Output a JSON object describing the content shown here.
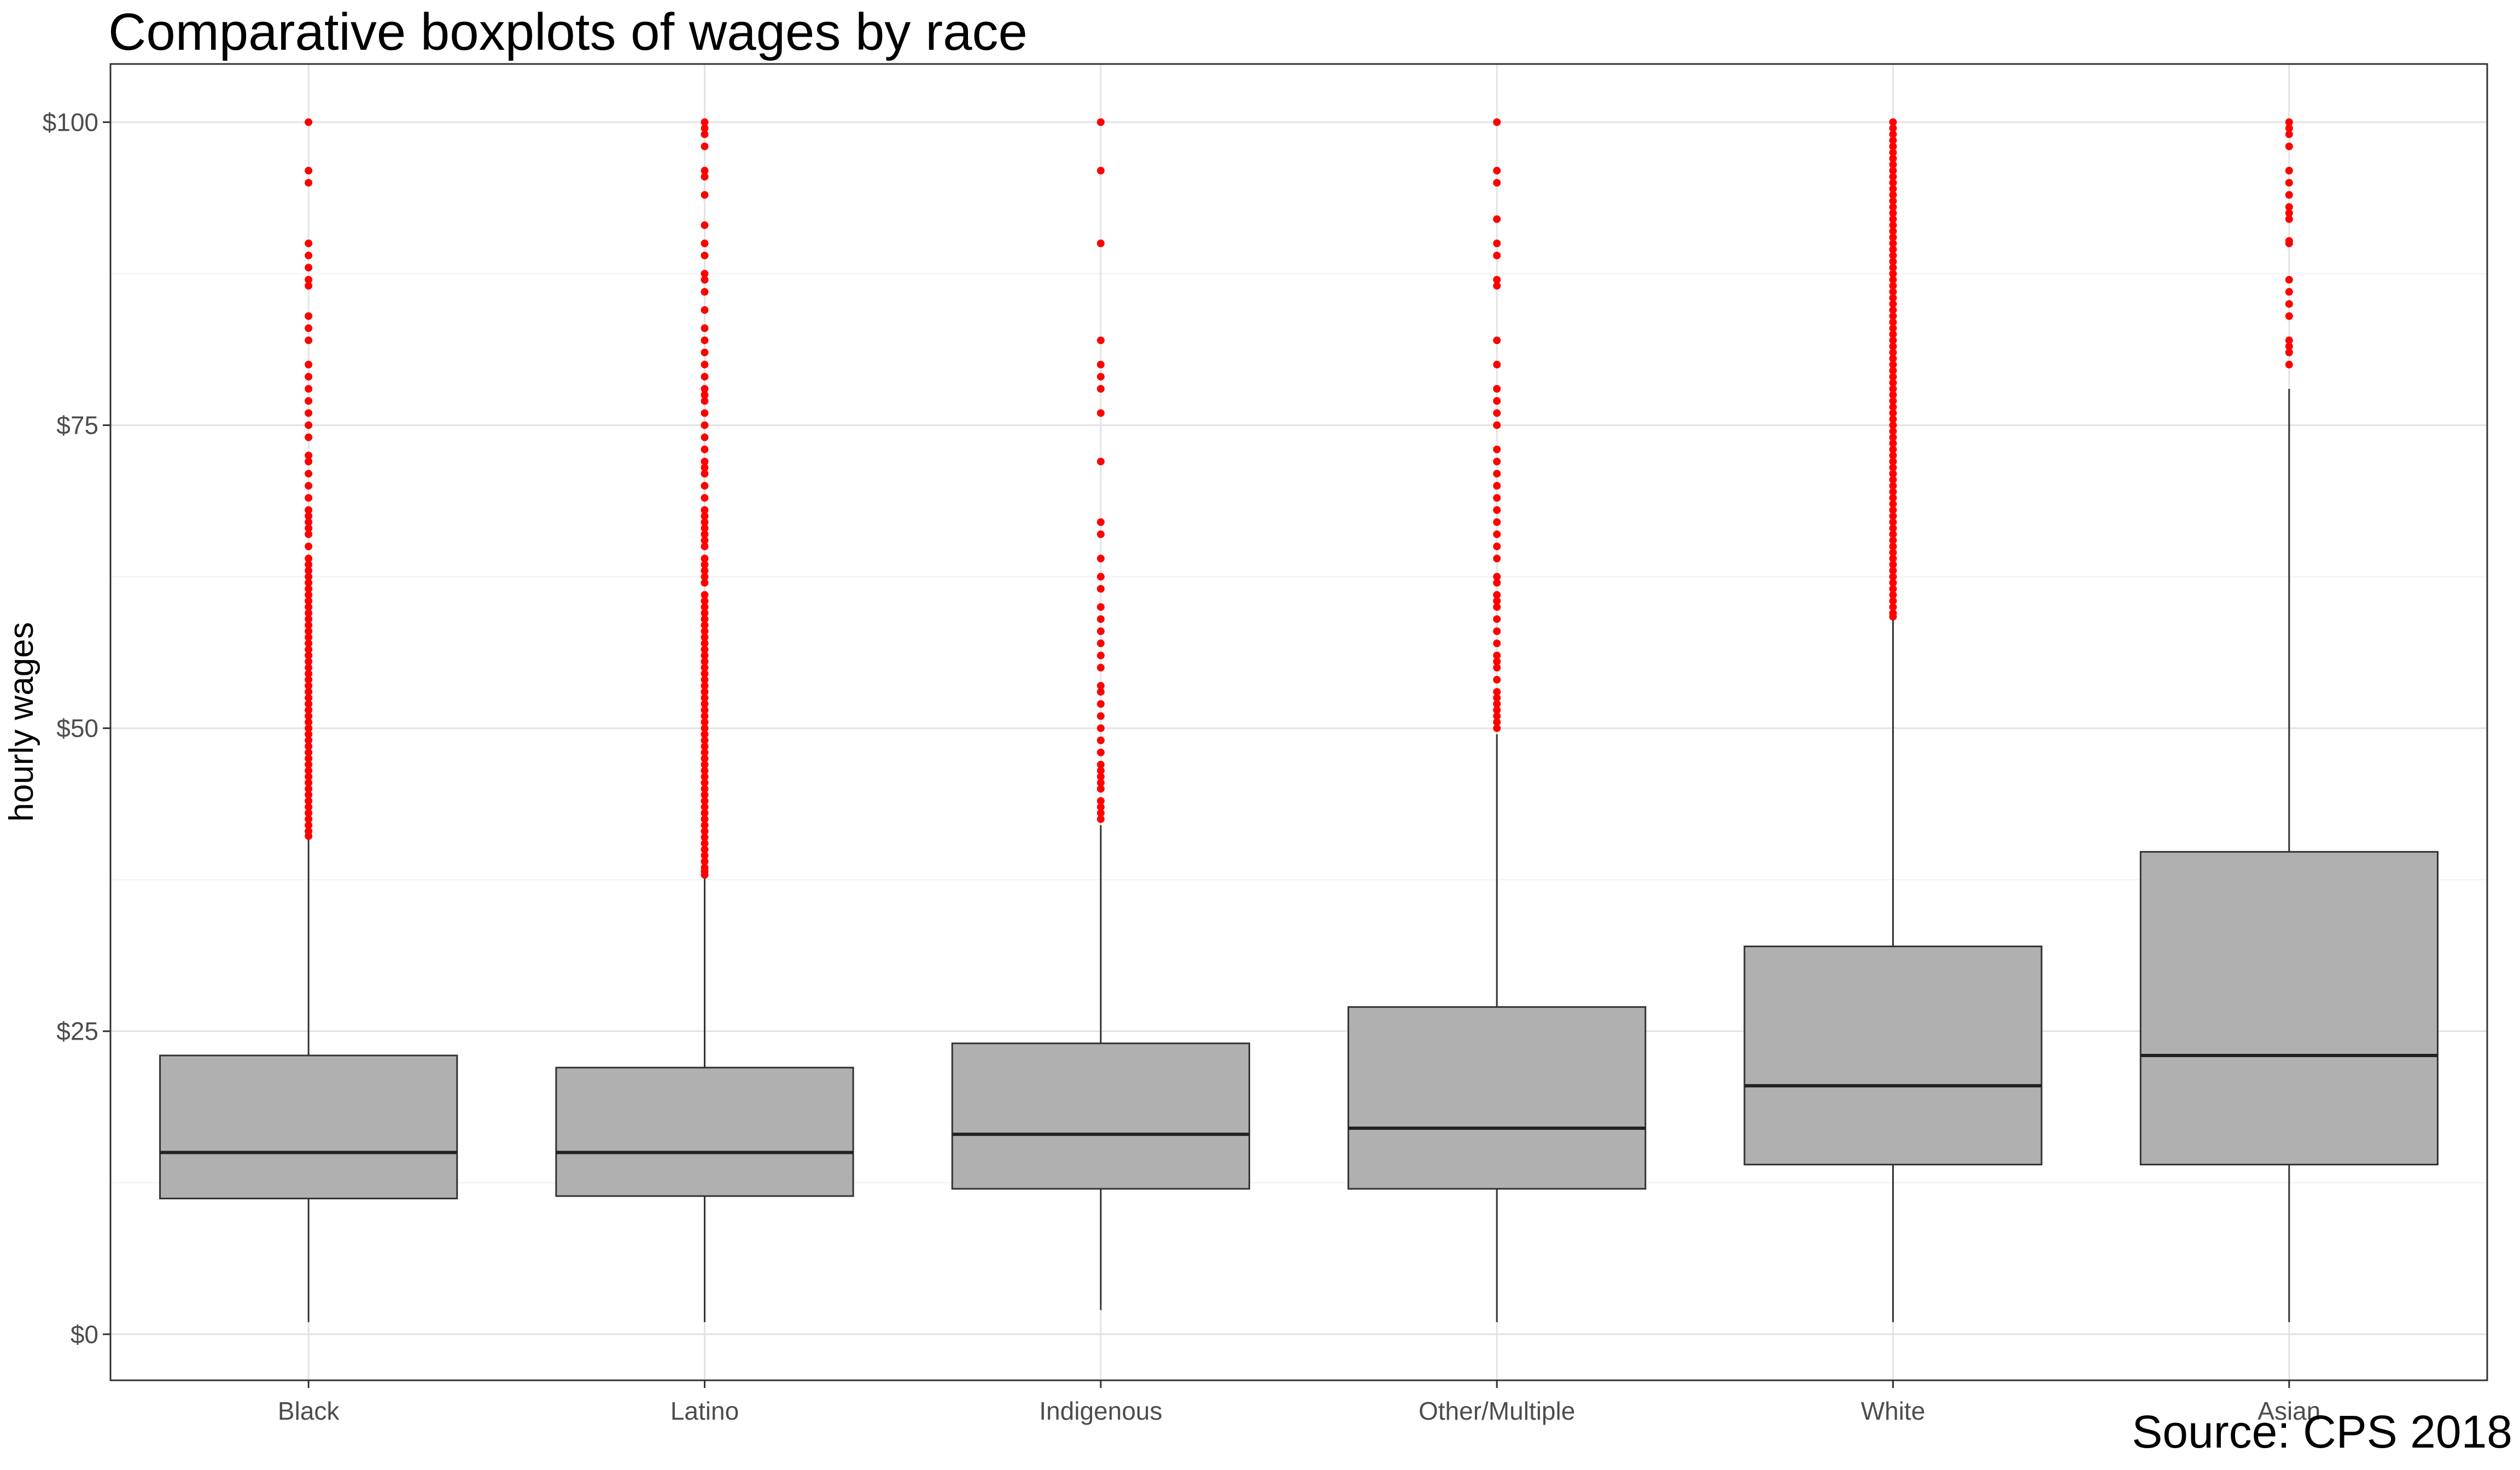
{
  "chart_data": {
    "type": "boxplot",
    "title": "Comparative boxplots of wages by race",
    "caption": "Source: CPS 2018",
    "xlabel": "",
    "ylabel": "hourly wages",
    "ylim": [
      -3.8,
      104.8
    ],
    "y_ticks": [
      0,
      25,
      50,
      75,
      100
    ],
    "y_tick_labels": [
      "$0",
      "$25",
      "$50",
      "$75",
      "$100"
    ],
    "grid": true,
    "box_fill": "#b0b0b0",
    "outlier_color": "#ff0000",
    "categories": [
      "Black",
      "Latino",
      "Indigenous",
      "Other/Multiple",
      "White",
      "Asian"
    ],
    "boxes": [
      {
        "category": "Black",
        "whisker_low": 1,
        "q1": 11.2,
        "median": 15,
        "q3": 23,
        "whisker_high": 41,
        "outliers": [
          41.1,
          41.5,
          42,
          42.5,
          43,
          43.5,
          44,
          44.5,
          45,
          45.5,
          46,
          46.5,
          47,
          47.5,
          48,
          48.5,
          49,
          49.5,
          50,
          50.5,
          51,
          51.5,
          52,
          52.5,
          53,
          53.5,
          54,
          54.5,
          55,
          55.5,
          56,
          56.5,
          57,
          57.5,
          58,
          58.5,
          59,
          59.5,
          60,
          60.5,
          61,
          61.5,
          62,
          62.5,
          63,
          63.5,
          64,
          65,
          66,
          66.5,
          67,
          67.5,
          68,
          69,
          70,
          71,
          72,
          72.5,
          74,
          75,
          76,
          77,
          78,
          79,
          80,
          82,
          83,
          84,
          86.5,
          87,
          88,
          89,
          90,
          95,
          96,
          100
        ]
      },
      {
        "category": "Latino",
        "whisker_low": 1,
        "q1": 11.4,
        "median": 15,
        "q3": 22,
        "whisker_high": 37.8,
        "outliers": [
          37.9,
          38.2,
          38.5,
          39,
          39.5,
          40,
          40.5,
          41,
          41.5,
          42,
          42.5,
          43,
          43.5,
          44,
          44.5,
          45,
          45.5,
          46,
          46.5,
          47,
          47.5,
          48,
          48.5,
          49,
          49.5,
          50,
          50.5,
          51,
          51.5,
          52,
          52.5,
          53,
          53.5,
          54,
          54.5,
          55,
          55.5,
          56,
          56.5,
          57,
          57.5,
          58,
          58.5,
          59,
          59.5,
          60,
          60.5,
          61,
          62,
          62.5,
          63,
          63.5,
          64,
          65,
          65.5,
          66,
          66.5,
          67,
          67.5,
          68,
          69,
          70,
          71,
          71.5,
          72,
          73,
          74,
          75,
          76,
          77,
          77.5,
          78,
          79,
          80,
          81,
          82,
          83,
          84.5,
          86,
          87,
          87.5,
          89,
          90,
          91.5,
          94,
          95.5,
          96,
          98,
          99,
          99.5,
          100
        ]
      },
      {
        "category": "Indigenous",
        "whisker_low": 2,
        "q1": 12,
        "median": 16.5,
        "q3": 24,
        "whisker_high": 42,
        "outliers": [
          42.5,
          43,
          43.5,
          44,
          45,
          45.5,
          46,
          46.5,
          47,
          48,
          49,
          50,
          51,
          52,
          53,
          53.5,
          55,
          56,
          57,
          58,
          59,
          60,
          61.5,
          62.5,
          64,
          66,
          67,
          72,
          76,
          78,
          79,
          80,
          82,
          90,
          96,
          100
        ]
      },
      {
        "category": "Other/Multiple",
        "whisker_low": 1,
        "q1": 12,
        "median": 17,
        "q3": 27,
        "whisker_high": 49.5,
        "outliers": [
          50,
          50.5,
          51,
          51.5,
          52,
          52.5,
          53,
          54,
          55,
          55.5,
          56,
          57,
          58,
          59,
          60,
          60.5,
          61,
          62,
          62.5,
          64,
          65,
          66,
          67,
          68,
          69,
          70,
          71,
          72,
          73,
          75,
          76,
          77,
          78,
          80,
          82,
          86.5,
          87,
          89,
          90,
          92,
          95,
          96,
          100
        ]
      },
      {
        "category": "White",
        "whisker_low": 1,
        "q1": 14,
        "median": 20.5,
        "q3": 32,
        "whisker_high": 59,
        "outliers": [
          59.2,
          59.5,
          60,
          60.5,
          61,
          61.5,
          62,
          62.5,
          63,
          63.5,
          64,
          64.5,
          65,
          65.5,
          66,
          66.5,
          67,
          67.5,
          68,
          68.5,
          69,
          69.5,
          70,
          70.5,
          71,
          71.5,
          72,
          72.5,
          73,
          73.5,
          74,
          74.5,
          75,
          75.5,
          76,
          76.5,
          77,
          77.5,
          78,
          78.5,
          79,
          79.5,
          80,
          80.5,
          81,
          81.5,
          82,
          82.5,
          83,
          83.5,
          84,
          84.5,
          85,
          85.5,
          86,
          86.5,
          87,
          87.5,
          88,
          88.5,
          89,
          89.5,
          90,
          90.5,
          91,
          91.5,
          92,
          92.5,
          93,
          93.5,
          94,
          94.5,
          95,
          95.5,
          96,
          96.5,
          97,
          97.5,
          98,
          98.5,
          99,
          99.5,
          100
        ]
      },
      {
        "category": "Asian",
        "whisker_low": 1,
        "q1": 14,
        "median": 23,
        "q3": 39.8,
        "whisker_high": 78,
        "outliers": [
          80,
          81,
          81.5,
          82,
          84,
          85,
          86,
          87,
          90,
          90.2,
          92,
          92.5,
          93,
          94,
          95,
          96,
          98,
          99,
          99.5,
          100
        ]
      }
    ]
  }
}
